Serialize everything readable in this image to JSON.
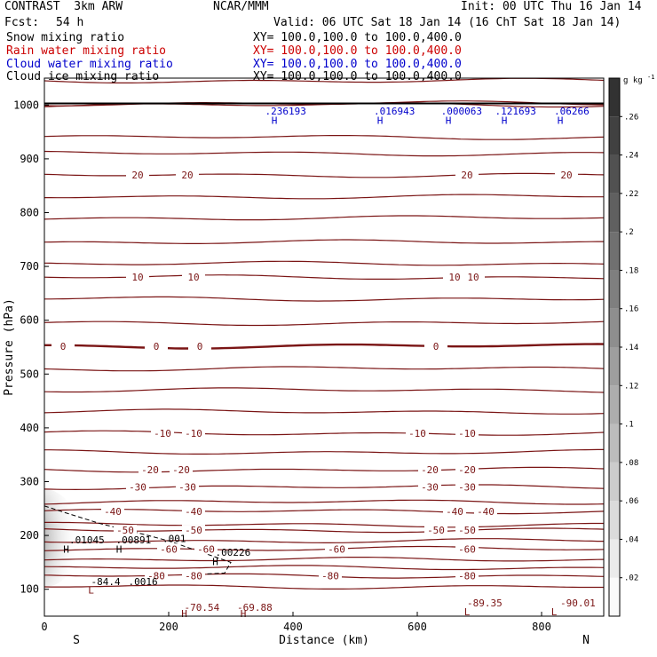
{
  "header": {
    "title": "CONTRAST  3km ARW",
    "center": "NCAR/MMM",
    "init": "Init: 00 UTC Thu 16 Jan 14",
    "fcst_label": "Fcst:",
    "fcst_value": "54 h",
    "valid": "Valid: 06 UTC Sat 18 Jan 14 (16 ChT Sat 18 Jan 14)"
  },
  "fields": [
    {
      "name": "Snow mixing ratio",
      "xy": "XY= 100.0,100.0 to 100.0,400.0",
      "color": "#000000"
    },
    {
      "name": "Rain water mixing ratio",
      "xy": "XY= 100.0,100.0 to 100.0,400.0",
      "color": "#cc0000"
    },
    {
      "name": "Cloud water mixing ratio",
      "xy": "XY= 100.0,100.0 to 100.0,400.0",
      "color": "#0000cc"
    },
    {
      "name": "Cloud ice mixing ratio",
      "xy": "XY= 100.0,100.0 to 100.0,400.0",
      "color": "#000000"
    }
  ],
  "colors": {
    "isotherm": "#7a1414",
    "cloud_water": "#0000cc",
    "snow_shade": "#888888"
  },
  "chart_data": {
    "type": "heatmap",
    "xlabel": "Distance (km)",
    "ylabel": "Pressure (hPa)",
    "xlim": [
      0,
      900
    ],
    "ylim": [
      1050,
      50
    ],
    "x_ticks": [
      0,
      200,
      400,
      600,
      800
    ],
    "y_ticks": [
      100,
      200,
      300,
      400,
      500,
      600,
      700,
      800,
      900,
      1000
    ],
    "end_labels": {
      "left": "S",
      "right": "N"
    },
    "colorbar": {
      "unit_label": "g kg",
      "unit_exp": "-1",
      "ticks": [
        ".02",
        ".04",
        ".06",
        ".08",
        ".1",
        ".12",
        ".14",
        ".16",
        ".18",
        ".2",
        ".22",
        ".24",
        ".26"
      ]
    },
    "isotherms": [
      {
        "p": 1045,
        "labels": []
      },
      {
        "p": 1003,
        "labels": []
      },
      {
        "p": 1000,
        "labels": []
      },
      {
        "p": 940,
        "labels": []
      },
      {
        "p": 910,
        "labels": []
      },
      {
        "p": 870,
        "labels": [
          {
            "x": 150,
            "text": "20"
          },
          {
            "x": 230,
            "text": "20"
          },
          {
            "x": 680,
            "text": "20"
          },
          {
            "x": 840,
            "text": "20"
          }
        ]
      },
      {
        "p": 830,
        "labels": []
      },
      {
        "p": 790,
        "labels": []
      },
      {
        "p": 745,
        "labels": []
      },
      {
        "p": 705,
        "labels": []
      },
      {
        "p": 680,
        "labels": [
          {
            "x": 150,
            "text": "10"
          },
          {
            "x": 240,
            "text": "10"
          },
          {
            "x": 660,
            "text": "10"
          },
          {
            "x": 690,
            "text": "10"
          }
        ]
      },
      {
        "p": 640,
        "labels": []
      },
      {
        "p": 595,
        "labels": []
      },
      {
        "p": 552,
        "labels": [
          {
            "x": 30,
            "text": "0"
          },
          {
            "x": 180,
            "text": "0"
          },
          {
            "x": 250,
            "text": "0"
          },
          {
            "x": 630,
            "text": "0"
          }
        ]
      },
      {
        "p": 510,
        "labels": []
      },
      {
        "p": 470,
        "labels": []
      },
      {
        "p": 430,
        "labels": []
      },
      {
        "p": 390,
        "labels": [
          {
            "x": 190,
            "text": "-10"
          },
          {
            "x": 240,
            "text": "-10"
          },
          {
            "x": 600,
            "text": "-10"
          },
          {
            "x": 680,
            "text": "-10"
          }
        ]
      },
      {
        "p": 355,
        "labels": []
      },
      {
        "p": 322,
        "labels": [
          {
            "x": 170,
            "text": "-20"
          },
          {
            "x": 220,
            "text": "-20"
          },
          {
            "x": 620,
            "text": "-20"
          },
          {
            "x": 680,
            "text": "-20"
          }
        ]
      },
      {
        "p": 290,
        "labels": [
          {
            "x": 150,
            "text": "-30"
          },
          {
            "x": 230,
            "text": "-30"
          },
          {
            "x": 620,
            "text": "-30"
          },
          {
            "x": 680,
            "text": "-30"
          }
        ]
      },
      {
        "p": 262,
        "labels": []
      },
      {
        "p": 245,
        "labels": [
          {
            "x": 110,
            "text": "-40"
          },
          {
            "x": 240,
            "text": "-40"
          },
          {
            "x": 660,
            "text": "-40"
          },
          {
            "x": 710,
            "text": "-40"
          }
        ]
      },
      {
        "p": 220,
        "labels": []
      },
      {
        "p": 210,
        "labels": [
          {
            "x": 130,
            "text": "-50"
          },
          {
            "x": 240,
            "text": "-50"
          },
          {
            "x": 630,
            "text": "-50"
          },
          {
            "x": 680,
            "text": "-50"
          }
        ]
      },
      {
        "p": 190,
        "labels": []
      },
      {
        "p": 175,
        "labels": [
          {
            "x": 200,
            "text": "-60"
          },
          {
            "x": 260,
            "text": "-60"
          },
          {
            "x": 470,
            "text": "-60"
          },
          {
            "x": 680,
            "text": "-60"
          }
        ]
      },
      {
        "p": 155,
        "labels": []
      },
      {
        "p": 140,
        "labels": []
      },
      {
        "p": 125,
        "labels": [
          {
            "x": 180,
            "text": "-80"
          },
          {
            "x": 240,
            "text": "-80"
          },
          {
            "x": 460,
            "text": "-80"
          },
          {
            "x": 680,
            "text": "-80"
          }
        ]
      },
      {
        "p": 105,
        "labels": []
      }
    ],
    "extrema_labels": [
      {
        "x": 225,
        "p": 60,
        "text": "-70.54",
        "color": "#7a1414"
      },
      {
        "x": 310,
        "p": 60,
        "text": "-69.88",
        "color": "#7a1414"
      },
      {
        "x": 680,
        "p": 68,
        "text": "-89.35",
        "color": "#7a1414"
      },
      {
        "x": 830,
        "p": 68,
        "text": "-90.01",
        "color": "#7a1414"
      },
      {
        "x": 75,
        "p": 108,
        "text": "-84.4",
        "color": "#000000"
      },
      {
        "x": 135,
        "p": 108,
        "text": ".0016",
        "color": "#000000"
      },
      {
        "x": 40,
        "p": 185,
        "text": ".01045",
        "color": "#000000"
      },
      {
        "x": 115,
        "p": 185,
        "text": ".00891",
        "color": "#000000"
      },
      {
        "x": 190,
        "p": 188,
        "text": ".001",
        "color": "#000000"
      },
      {
        "x": 275,
        "p": 162,
        "text": ".00226",
        "color": "#000000"
      },
      {
        "x": 355,
        "p": 982,
        "text": ".236193",
        "color": "#0000cc"
      },
      {
        "x": 530,
        "p": 982,
        "text": ".016943",
        "color": "#0000cc"
      },
      {
        "x": 638,
        "p": 982,
        "text": ".000063",
        "color": "#0000cc"
      },
      {
        "x": 725,
        "p": 982,
        "text": ".121693",
        "color": "#0000cc"
      },
      {
        "x": 820,
        "p": 982,
        "text": ".06266",
        "color": "#0000cc"
      }
    ],
    "hl_markers": [
      {
        "x": 225,
        "p": 48,
        "text": "H",
        "color": "#7a1414"
      },
      {
        "x": 320,
        "p": 48,
        "text": "H",
        "color": "#7a1414"
      },
      {
        "x": 680,
        "p": 52,
        "text": "L",
        "color": "#7a1414"
      },
      {
        "x": 820,
        "p": 52,
        "text": "L",
        "color": "#7a1414"
      },
      {
        "x": 75,
        "p": 92,
        "text": "L",
        "color": "#7a1414"
      },
      {
        "x": 35,
        "p": 168,
        "text": "H",
        "color": "#000000"
      },
      {
        "x": 120,
        "p": 168,
        "text": "H",
        "color": "#000000"
      },
      {
        "x": 275,
        "p": 145,
        "text": "H",
        "color": "#000000"
      },
      {
        "x": 370,
        "p": 965,
        "text": "H",
        "color": "#0000cc"
      },
      {
        "x": 540,
        "p": 965,
        "text": "H",
        "color": "#0000cc"
      },
      {
        "x": 650,
        "p": 965,
        "text": "H",
        "color": "#0000cc"
      },
      {
        "x": 740,
        "p": 965,
        "text": "H",
        "color": "#0000cc"
      },
      {
        "x": 830,
        "p": 965,
        "text": "H",
        "color": "#0000cc"
      }
    ]
  }
}
